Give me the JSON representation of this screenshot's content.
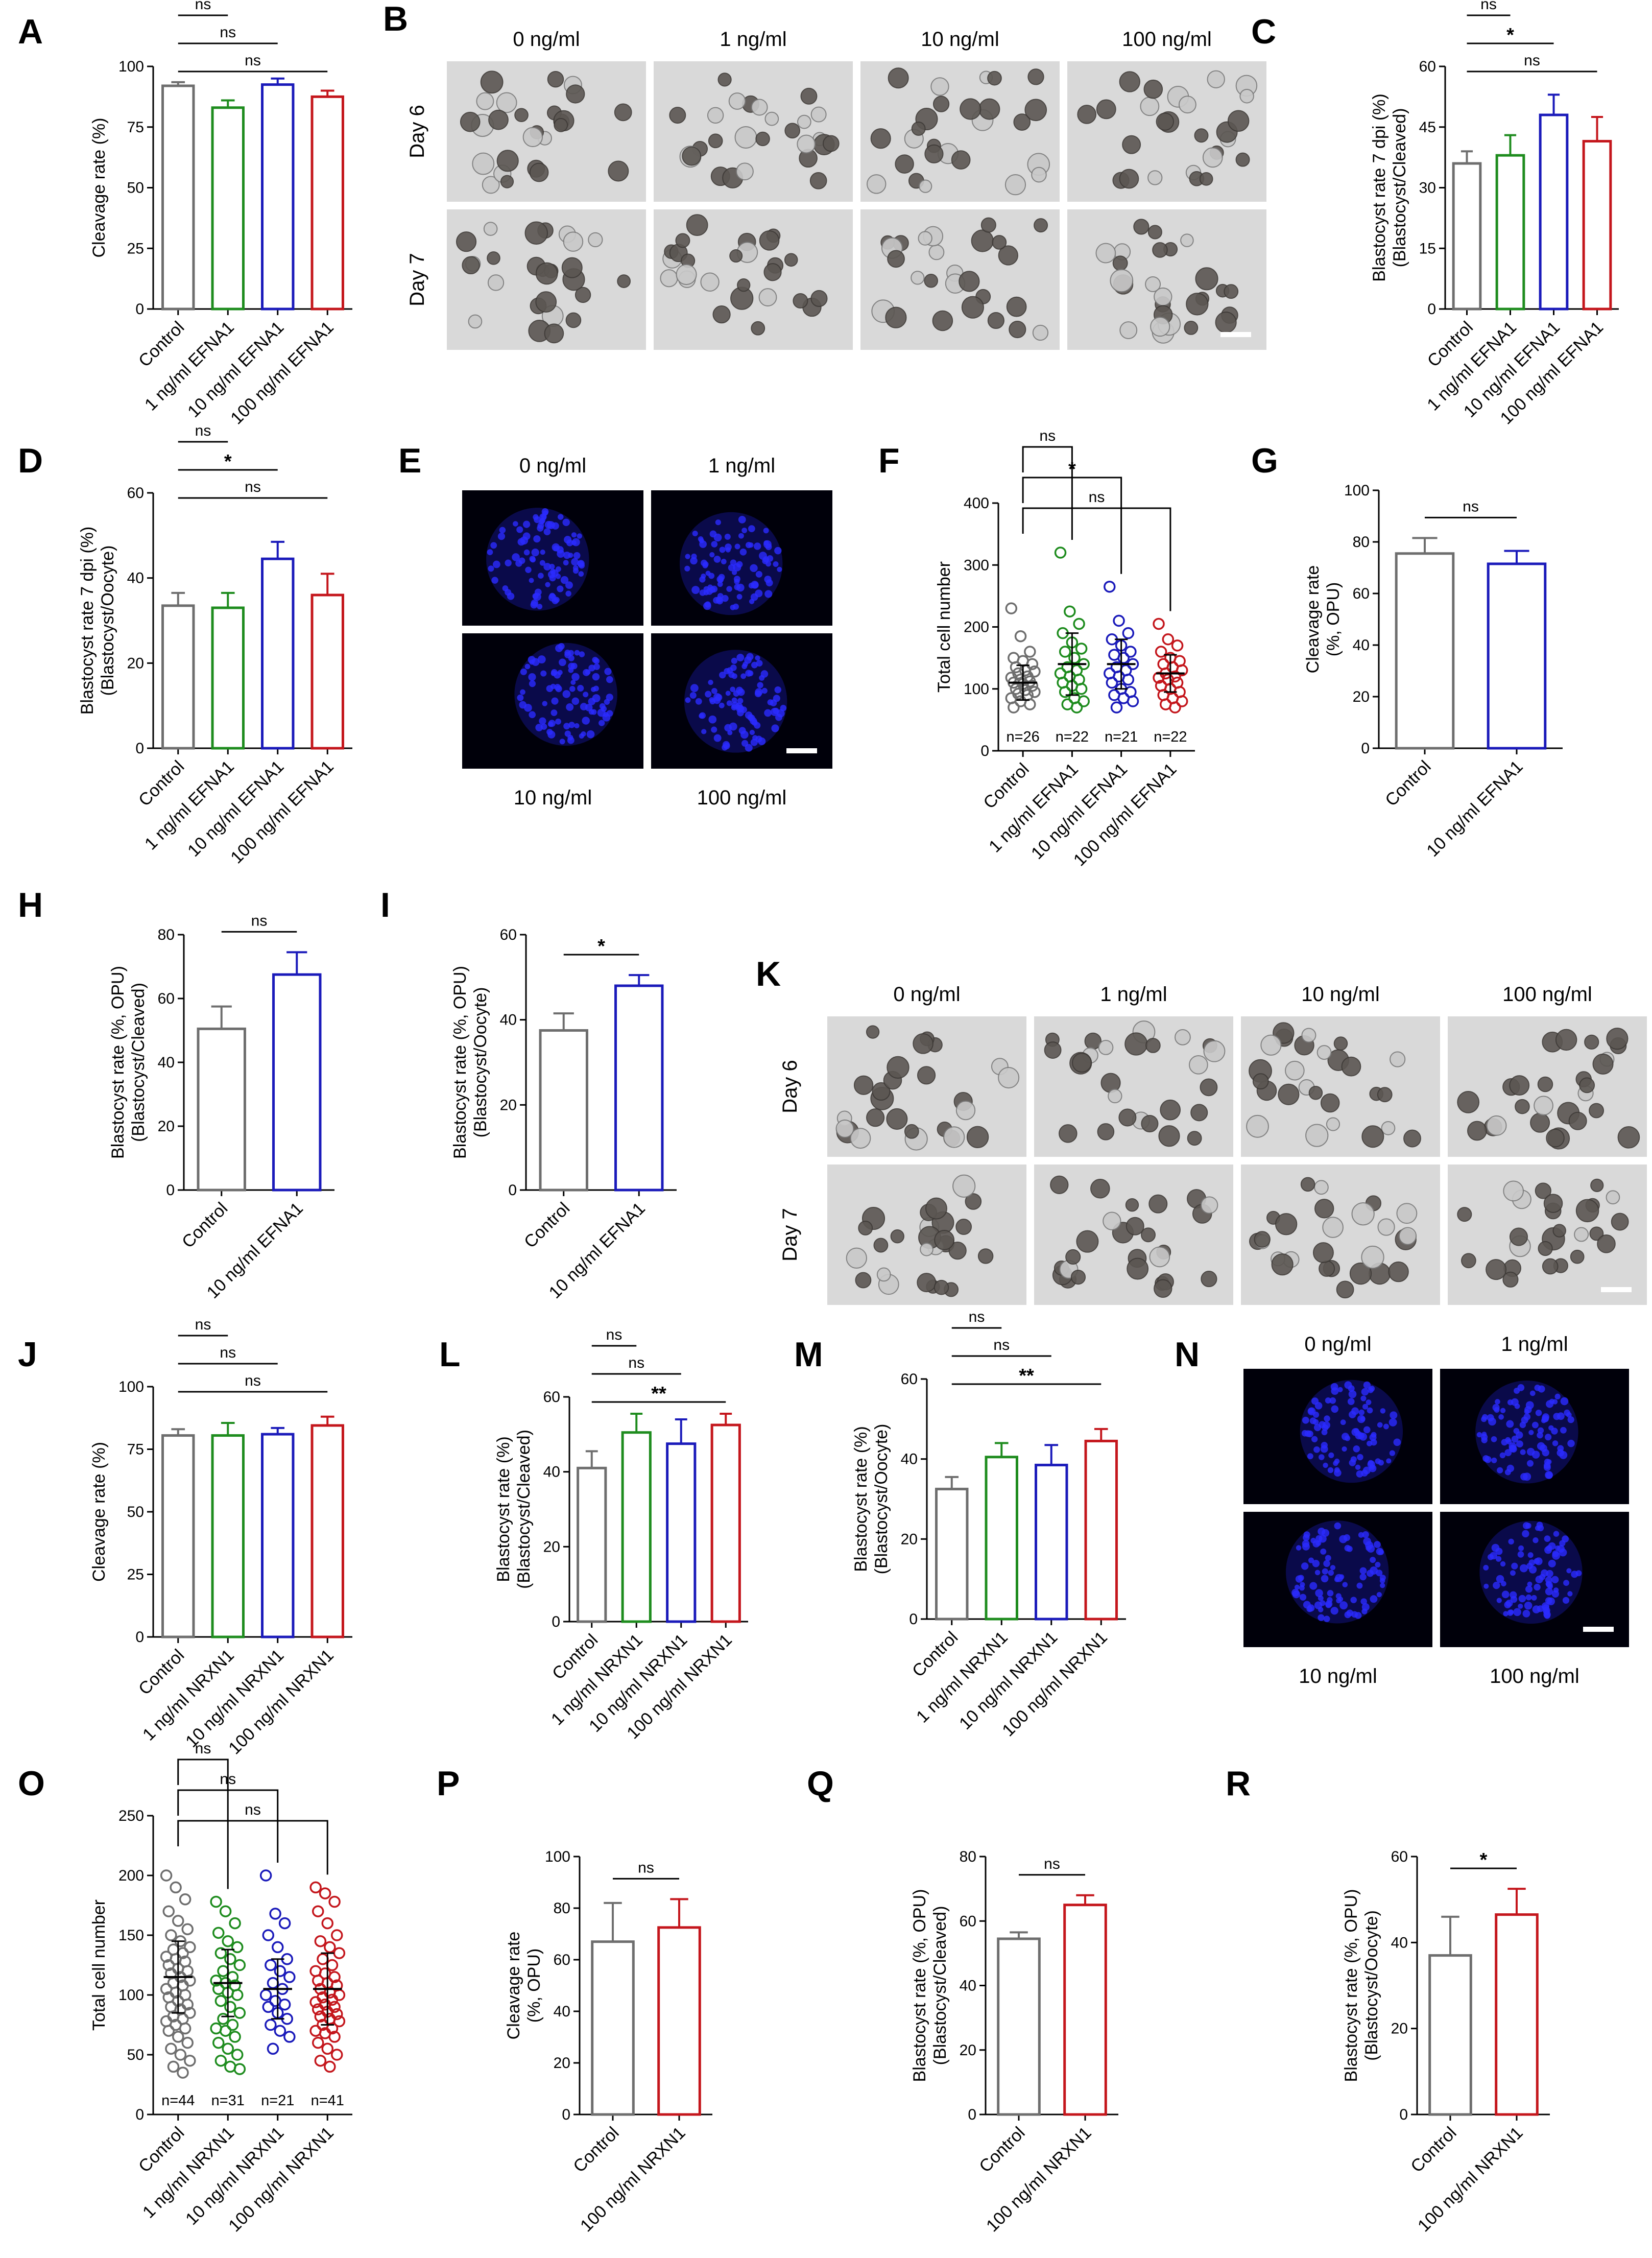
{
  "colors": {
    "control": "#6e6e6e",
    "g1": "#1e8c1e",
    "g10": "#1a1aba",
    "g100": "#c4161c"
  },
  "chart_data": [
    {
      "id": "A",
      "type": "bar",
      "ylabel": "Cleavage rate (%)",
      "ylim": [
        0,
        100
      ],
      "yticks": [
        "0",
        "25",
        "50",
        "75",
        "100"
      ],
      "categories": [
        "Control",
        "1 ng/ml EFNA1",
        "10 ng/ml EFNA1",
        "100 ng/ml EFNA1"
      ],
      "values": [
        92,
        83,
        92.5,
        87.5
      ],
      "errors": [
        1.5,
        3,
        2.5,
        2.5
      ],
      "sig": [
        {
          "from": 0,
          "to": 1,
          "text": "ns"
        },
        {
          "from": 0,
          "to": 2,
          "text": "ns"
        },
        {
          "from": 0,
          "to": 3,
          "text": "ns"
        }
      ]
    },
    {
      "id": "C",
      "type": "bar",
      "ylabel": "Blastocyst rate 7 dpi (%)",
      "ylabel2": "(Blastocyst/Cleaved)",
      "ylim": [
        0,
        60
      ],
      "yticks": [
        "0",
        "15",
        "30",
        "45",
        "60"
      ],
      "categories": [
        "Control",
        "1 ng/ml EFNA1",
        "10 ng/ml EFNA1",
        "100 ng/ml EFNA1"
      ],
      "values": [
        36,
        38,
        48,
        41.5
      ],
      "errors": [
        3,
        5,
        5,
        6
      ],
      "sig": [
        {
          "from": 0,
          "to": 1,
          "text": "ns"
        },
        {
          "from": 0,
          "to": 2,
          "text": "*"
        },
        {
          "from": 0,
          "to": 3,
          "text": "ns"
        }
      ]
    },
    {
      "id": "D",
      "type": "bar",
      "ylabel": "Blastocyst rate 7 dpi (%)",
      "ylabel2": "(Blastocyst/Oocyte)",
      "ylim": [
        0,
        60
      ],
      "yticks": [
        "0",
        "20",
        "40",
        "60"
      ],
      "categories": [
        "Control",
        "1 ng/ml EFNA1",
        "10 ng/ml EFNA1",
        "100 ng/ml EFNA1"
      ],
      "values": [
        33.5,
        33,
        44.5,
        36
      ],
      "errors": [
        3,
        3.5,
        4,
        5
      ],
      "sig": [
        {
          "from": 0,
          "to": 1,
          "text": "ns"
        },
        {
          "from": 0,
          "to": 2,
          "text": "*"
        },
        {
          "from": 0,
          "to": 3,
          "text": "ns"
        }
      ]
    },
    {
      "id": "F",
      "type": "scatter",
      "ylabel": "Total cell number",
      "ylim": [
        0,
        400
      ],
      "yticks": [
        "0",
        "100",
        "200",
        "300",
        "400"
      ],
      "categories": [
        "Control",
        "1 ng/ml EFNA1",
        "10 ng/ml EFNA1",
        "100 ng/ml EFNA1"
      ],
      "means": [
        110,
        140,
        140,
        125
      ],
      "sds": [
        28,
        50,
        40,
        30
      ],
      "nlabels": [
        "n=26",
        "n=22",
        "n=21",
        "n=22"
      ],
      "points": [
        [
          230,
          185,
          160,
          150,
          145,
          140,
          135,
          130,
          128,
          125,
          120,
          118,
          115,
          112,
          110,
          108,
          105,
          100,
          98,
          95,
          92,
          90,
          85,
          80,
          75,
          70
        ],
        [
          320,
          225,
          205,
          190,
          175,
          165,
          160,
          150,
          140,
          135,
          130,
          125,
          120,
          115,
          110,
          105,
          100,
          95,
          85,
          80,
          75,
          70
        ],
        [
          265,
          210,
          190,
          180,
          170,
          160,
          155,
          150,
          140,
          135,
          130,
          125,
          120,
          115,
          110,
          100,
          95,
          90,
          85,
          80,
          70
        ],
        [
          205,
          180,
          170,
          160,
          150,
          145,
          140,
          135,
          130,
          125,
          120,
          118,
          115,
          110,
          105,
          100,
          95,
          90,
          85,
          80,
          75,
          70
        ]
      ],
      "sig": [
        {
          "from": 0,
          "to": 1,
          "text": "ns",
          "bracket": true
        },
        {
          "from": 0,
          "to": 2,
          "text": "*",
          "bracket": true
        },
        {
          "from": 0,
          "to": 3,
          "text": "ns",
          "bracket": true
        }
      ]
    },
    {
      "id": "G",
      "type": "bar",
      "ylabel": "Cleavage rate",
      "ylabel2": "(%, OPU)",
      "ylim": [
        0,
        100
      ],
      "yticks": [
        "0",
        "20",
        "40",
        "60",
        "80",
        "100"
      ],
      "categories": [
        "Control",
        "10 ng/ml EFNA1"
      ],
      "values": [
        75.5,
        71.5
      ],
      "errors": [
        6,
        5
      ],
      "sig": [
        {
          "from": 0,
          "to": 1,
          "text": "ns"
        }
      ]
    },
    {
      "id": "H",
      "type": "bar",
      "ylabel": "Blastocyst rate (%, OPU)",
      "ylabel2": "(Blastocyst/Cleaved)",
      "ylim": [
        0,
        80
      ],
      "yticks": [
        "0",
        "20",
        "40",
        "60",
        "80"
      ],
      "categories": [
        "Control",
        "10 ng/ml EFNA1"
      ],
      "values": [
        50.5,
        67.5
      ],
      "errors": [
        7,
        7
      ],
      "sig": [
        {
          "from": 0,
          "to": 1,
          "text": "ns"
        }
      ]
    },
    {
      "id": "I",
      "type": "bar",
      "ylabel": "Blastocyst rate  (%, OPU)",
      "ylabel2": "(Blastocyst/Oocyte)",
      "ylim": [
        0,
        60
      ],
      "yticks": [
        "0",
        "20",
        "40",
        "60"
      ],
      "categories": [
        "Control",
        "10 ng/ml EFNA1"
      ],
      "values": [
        37.5,
        48
      ],
      "errors": [
        4,
        2.5
      ],
      "sig": [
        {
          "from": 0,
          "to": 1,
          "text": "*"
        }
      ]
    },
    {
      "id": "J",
      "type": "bar",
      "ylabel": "Cleavage rate (%)",
      "ylim": [
        0,
        100
      ],
      "yticks": [
        "0",
        "25",
        "50",
        "75",
        "100"
      ],
      "categories": [
        "Control",
        "1 ng/ml NRXN1",
        "10 ng/ml NRXN1",
        "100 ng/ml NRXN1"
      ],
      "values": [
        80.5,
        80.5,
        81,
        84.5
      ],
      "errors": [
        2.5,
        5,
        2.5,
        3.5
      ],
      "sig": [
        {
          "from": 0,
          "to": 1,
          "text": "ns"
        },
        {
          "from": 0,
          "to": 2,
          "text": "ns"
        },
        {
          "from": 0,
          "to": 3,
          "text": "ns"
        }
      ]
    },
    {
      "id": "L",
      "type": "bar",
      "ylabel": "Blastocyst rate (%)",
      "ylabel2": "(Blastocyst/Cleaved)",
      "ylim": [
        0,
        60
      ],
      "yticks": [
        "0",
        "20",
        "40",
        "60"
      ],
      "categories": [
        "Control",
        "1 ng/ml NRXN1",
        "10 ng/ml NRXN1",
        "100 ng/ml NRXN1"
      ],
      "values": [
        41,
        50.5,
        47.5,
        52.5
      ],
      "errors": [
        4.5,
        5,
        6.5,
        3
      ],
      "sig": [
        {
          "from": 0,
          "to": 1,
          "text": "ns"
        },
        {
          "from": 0,
          "to": 2,
          "text": "ns"
        },
        {
          "from": 0,
          "to": 3,
          "text": "**"
        }
      ]
    },
    {
      "id": "M",
      "type": "bar",
      "ylabel": "Blastocyst rate (%)",
      "ylabel2": "(Blastocyst/Oocyte)",
      "ylim": [
        0,
        60
      ],
      "yticks": [
        "0",
        "20",
        "40",
        "60"
      ],
      "categories": [
        "Control",
        "1 ng/ml NRXN1",
        "10 ng/ml NRXN1",
        "100 ng/ml NRXN1"
      ],
      "values": [
        32.5,
        40.5,
        38.5,
        44.5
      ],
      "errors": [
        3,
        3.5,
        5,
        3
      ],
      "sig": [
        {
          "from": 0,
          "to": 1,
          "text": "ns"
        },
        {
          "from": 0,
          "to": 2,
          "text": "ns"
        },
        {
          "from": 0,
          "to": 3,
          "text": "**"
        }
      ]
    },
    {
      "id": "O",
      "type": "scatter",
      "ylabel": "Total cell number",
      "ylim": [
        0,
        250
      ],
      "yticks": [
        "0",
        "50",
        "100",
        "150",
        "200",
        "250"
      ],
      "categories": [
        "Control",
        "1 ng/ml NRXN1",
        "10 ng/ml NRXN1",
        "100 ng/ml NRXN1"
      ],
      "means": [
        115,
        110,
        105,
        105
      ],
      "sds": [
        30,
        28,
        25,
        30
      ],
      "nlabels": [
        "n=44",
        "n=31",
        "n=21",
        "n=41"
      ],
      "points": [
        [
          200,
          190,
          180,
          170,
          162,
          155,
          150,
          145,
          140,
          138,
          135,
          132,
          130,
          128,
          125,
          122,
          120,
          118,
          115,
          112,
          110,
          108,
          105,
          102,
          100,
          98,
          95,
          92,
          90,
          88,
          85,
          82,
          80,
          78,
          75,
          72,
          70,
          65,
          60,
          55,
          50,
          45,
          40,
          35
        ],
        [
          178,
          170,
          160,
          152,
          145,
          140,
          135,
          130,
          125,
          120,
          115,
          112,
          110,
          108,
          105,
          102,
          100,
          95,
          90,
          85,
          80,
          75,
          72,
          70,
          65,
          60,
          55,
          50,
          45,
          40,
          38
        ],
        [
          200,
          168,
          160,
          150,
          140,
          130,
          125,
          120,
          115,
          110,
          105,
          100,
          95,
          92,
          90,
          85,
          80,
          75,
          70,
          65,
          55
        ],
        [
          190,
          185,
          178,
          170,
          160,
          150,
          145,
          140,
          135,
          130,
          125,
          120,
          118,
          115,
          112,
          110,
          108,
          105,
          102,
          100,
          98,
          96,
          94,
          92,
          90,
          88,
          86,
          84,
          82,
          80,
          78,
          75,
          72,
          70,
          68,
          65,
          60,
          55,
          50,
          45,
          40
        ]
      ],
      "sig": [
        {
          "from": 0,
          "to": 1,
          "text": "ns",
          "bracket": true
        },
        {
          "from": 0,
          "to": 2,
          "text": "ns",
          "bracket": true
        },
        {
          "from": 0,
          "to": 3,
          "text": "ns",
          "bracket": true
        }
      ]
    },
    {
      "id": "P",
      "type": "bar",
      "ylabel": "Cleavage rate",
      "ylabel2": "(%, OPU)",
      "ylim": [
        0,
        100
      ],
      "yticks": [
        "0",
        "20",
        "40",
        "60",
        "80",
        "100"
      ],
      "categories": [
        "Control",
        "100 ng/ml NRXN1"
      ],
      "values": [
        67,
        72.5
      ],
      "errors": [
        15,
        11
      ],
      "sig": [
        {
          "from": 0,
          "to": 1,
          "text": "ns"
        }
      ]
    },
    {
      "id": "Q",
      "type": "bar",
      "ylabel": "Blastocyst rate (%, OPU)",
      "ylabel2": "(Blastocyst/Cleaved)",
      "ylim": [
        0,
        80
      ],
      "yticks": [
        "0",
        "20",
        "40",
        "60",
        "80"
      ],
      "categories": [
        "Control",
        "100 ng/ml NRXN1"
      ],
      "values": [
        54.5,
        65
      ],
      "errors": [
        2,
        3
      ],
      "sig": [
        {
          "from": 0,
          "to": 1,
          "text": "ns"
        }
      ]
    },
    {
      "id": "R",
      "type": "bar",
      "ylabel": "Blastocyst rate (%, OPU)",
      "ylabel2": "(Blastocyst/Oocyte)",
      "ylim": [
        0,
        60
      ],
      "yticks": [
        "0",
        "20",
        "40",
        "60"
      ],
      "categories": [
        "Control",
        "100 ng/ml NRXN1"
      ],
      "values": [
        37,
        46.5
      ],
      "errors": [
        9,
        6
      ],
      "sig": [
        {
          "from": 0,
          "to": 1,
          "text": "*"
        }
      ]
    }
  ],
  "image_panels": [
    {
      "id": "B",
      "cols": [
        "0 ng/ml",
        "1 ng/ml",
        "10 ng/ml",
        "100 ng/ml"
      ],
      "rows": [
        "Day 6",
        "Day 7"
      ]
    },
    {
      "id": "E",
      "top": [
        "0 ng/ml",
        "1 ng/ml"
      ],
      "bottom": [
        "10 ng/ml",
        "100 ng/ml"
      ]
    },
    {
      "id": "K",
      "cols": [
        "0 ng/ml",
        "1 ng/ml",
        "10 ng/ml",
        "100 ng/ml"
      ],
      "rows": [
        "Day 6",
        "Day 7"
      ]
    },
    {
      "id": "N",
      "top": [
        "0 ng/ml",
        "1 ng/ml"
      ],
      "bottom": [
        "10 ng/ml",
        "100 ng/ml"
      ]
    }
  ]
}
